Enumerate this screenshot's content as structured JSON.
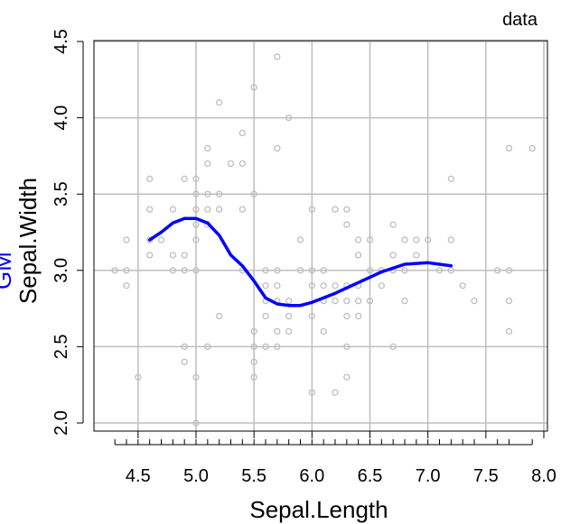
{
  "chart_data": {
    "type": "scatter",
    "legend_label": "data",
    "legend_position": "top-right",
    "xlabel": "Sepal.Length",
    "ylabel": "Sepal.Width",
    "ylabel_extra": "GM",
    "xlim": [
      4.2,
      8.0
    ],
    "ylim": [
      2.0,
      4.5
    ],
    "x_ticks": [
      "4.5",
      "5.0",
      "5.5",
      "6.0",
      "6.5",
      "7.0",
      "7.5",
      "8.0"
    ],
    "y_ticks": [
      "2.0",
      "2.5",
      "3.0",
      "3.5",
      "4.0",
      "4.5"
    ],
    "grid": true,
    "rug": true,
    "colors": {
      "points": "#bebebe",
      "line": "#0000ff",
      "grid": "#bebebe",
      "label_extra": "#0000ff"
    },
    "points": [
      [
        4.3,
        3.0
      ],
      [
        4.4,
        3.2
      ],
      [
        4.4,
        3.0
      ],
      [
        4.4,
        2.9
      ],
      [
        4.5,
        2.3
      ],
      [
        4.6,
        3.6
      ],
      [
        4.6,
        3.4
      ],
      [
        4.6,
        3.2
      ],
      [
        4.6,
        3.1
      ],
      [
        4.7,
        3.2
      ],
      [
        4.8,
        3.4
      ],
      [
        4.8,
        3.1
      ],
      [
        4.8,
        3.0
      ],
      [
        4.9,
        3.6
      ],
      [
        4.9,
        3.1
      ],
      [
        4.9,
        3.0
      ],
      [
        4.9,
        2.5
      ],
      [
        4.9,
        2.4
      ],
      [
        5.0,
        3.6
      ],
      [
        5.0,
        3.5
      ],
      [
        5.0,
        3.4
      ],
      [
        5.0,
        3.3
      ],
      [
        5.0,
        3.2
      ],
      [
        5.0,
        3.0
      ],
      [
        5.0,
        2.3
      ],
      [
        5.0,
        2.0
      ],
      [
        5.1,
        3.8
      ],
      [
        5.1,
        3.7
      ],
      [
        5.1,
        3.5
      ],
      [
        5.1,
        3.4
      ],
      [
        5.1,
        3.3
      ],
      [
        5.1,
        2.5
      ],
      [
        5.2,
        4.1
      ],
      [
        5.2,
        3.5
      ],
      [
        5.2,
        3.4
      ],
      [
        5.2,
        2.7
      ],
      [
        5.3,
        3.7
      ],
      [
        5.4,
        3.9
      ],
      [
        5.4,
        3.7
      ],
      [
        5.4,
        3.4
      ],
      [
        5.4,
        3.0
      ],
      [
        5.5,
        4.2
      ],
      [
        5.5,
        3.5
      ],
      [
        5.5,
        2.6
      ],
      [
        5.5,
        2.5
      ],
      [
        5.5,
        2.4
      ],
      [
        5.5,
        2.3
      ],
      [
        5.6,
        3.0
      ],
      [
        5.6,
        2.9
      ],
      [
        5.6,
        2.8
      ],
      [
        5.6,
        2.7
      ],
      [
        5.6,
        2.5
      ],
      [
        5.7,
        4.4
      ],
      [
        5.7,
        3.8
      ],
      [
        5.7,
        3.0
      ],
      [
        5.7,
        2.9
      ],
      [
        5.7,
        2.8
      ],
      [
        5.7,
        2.6
      ],
      [
        5.7,
        2.5
      ],
      [
        5.8,
        4.0
      ],
      [
        5.8,
        2.8
      ],
      [
        5.8,
        2.7
      ],
      [
        5.8,
        2.6
      ],
      [
        5.9,
        3.2
      ],
      [
        5.9,
        3.0
      ],
      [
        6.0,
        3.4
      ],
      [
        6.0,
        3.0
      ],
      [
        6.0,
        2.9
      ],
      [
        6.0,
        2.7
      ],
      [
        6.0,
        2.2
      ],
      [
        6.1,
        3.0
      ],
      [
        6.1,
        2.9
      ],
      [
        6.1,
        2.8
      ],
      [
        6.1,
        2.6
      ],
      [
        6.2,
        3.4
      ],
      [
        6.2,
        2.9
      ],
      [
        6.2,
        2.8
      ],
      [
        6.2,
        2.2
      ],
      [
        6.3,
        3.4
      ],
      [
        6.3,
        3.3
      ],
      [
        6.3,
        2.9
      ],
      [
        6.3,
        2.8
      ],
      [
        6.3,
        2.7
      ],
      [
        6.3,
        2.5
      ],
      [
        6.3,
        2.3
      ],
      [
        6.4,
        3.2
      ],
      [
        6.4,
        3.1
      ],
      [
        6.4,
        2.9
      ],
      [
        6.4,
        2.8
      ],
      [
        6.4,
        2.7
      ],
      [
        6.5,
        3.2
      ],
      [
        6.5,
        3.0
      ],
      [
        6.5,
        2.8
      ],
      [
        6.6,
        3.0
      ],
      [
        6.6,
        2.9
      ],
      [
        6.7,
        3.3
      ],
      [
        6.7,
        3.1
      ],
      [
        6.7,
        3.0
      ],
      [
        6.7,
        2.5
      ],
      [
        6.8,
        3.2
      ],
      [
        6.8,
        3.0
      ],
      [
        6.8,
        2.8
      ],
      [
        6.9,
        3.2
      ],
      [
        6.9,
        3.1
      ],
      [
        7.0,
        3.2
      ],
      [
        7.1,
        3.0
      ],
      [
        7.2,
        3.6
      ],
      [
        7.2,
        3.2
      ],
      [
        7.2,
        3.0
      ],
      [
        7.3,
        2.9
      ],
      [
        7.4,
        2.8
      ],
      [
        7.6,
        3.0
      ],
      [
        7.7,
        3.8
      ],
      [
        7.7,
        3.0
      ],
      [
        7.7,
        2.8
      ],
      [
        7.7,
        2.6
      ],
      [
        7.9,
        3.8
      ]
    ],
    "series": [
      {
        "type": "line",
        "points": [
          [
            4.6,
            3.2
          ],
          [
            4.7,
            3.25
          ],
          [
            4.8,
            3.31
          ],
          [
            4.9,
            3.34
          ],
          [
            5.0,
            3.34
          ],
          [
            5.1,
            3.31
          ],
          [
            5.2,
            3.23
          ],
          [
            5.3,
            3.1
          ],
          [
            5.4,
            3.03
          ],
          [
            5.5,
            2.93
          ],
          [
            5.6,
            2.82
          ],
          [
            5.7,
            2.78
          ],
          [
            5.8,
            2.77
          ],
          [
            5.9,
            2.77
          ],
          [
            6.0,
            2.79
          ],
          [
            6.2,
            2.85
          ],
          [
            6.4,
            2.92
          ],
          [
            6.6,
            2.99
          ],
          [
            6.8,
            3.04
          ],
          [
            7.0,
            3.05
          ],
          [
            7.1,
            3.04
          ],
          [
            7.2,
            3.03
          ]
        ]
      }
    ]
  }
}
